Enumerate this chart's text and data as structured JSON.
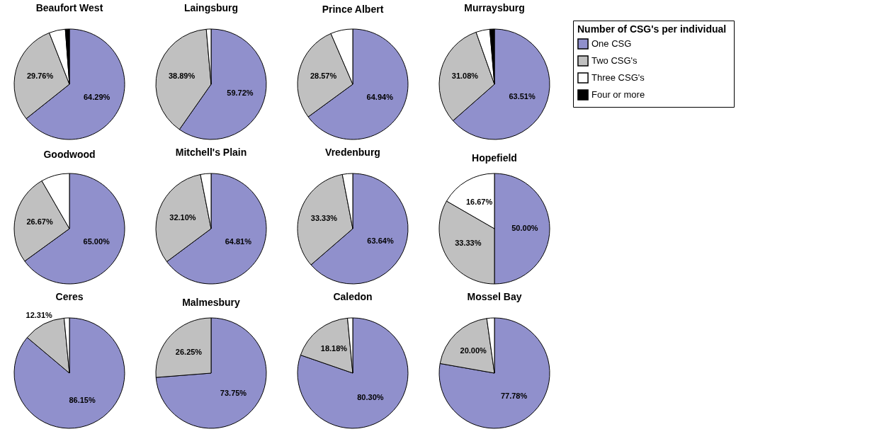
{
  "chart_data": [
    {
      "type": "pie",
      "title": "Beaufort West",
      "legend": "right",
      "legend_title": "Number of CSG's  per individual",
      "categories": [
        "One CSG",
        "Two CSG's",
        "Three CSG's",
        "Four or more"
      ],
      "colors": [
        "#9090cc",
        "#c0c0c0",
        "#ffffff",
        "#000000"
      ],
      "values": [
        64.29,
        29.76,
        4.76,
        1.19
      ],
      "value_labels": [
        "64.29%",
        "29.76%",
        null,
        null
      ]
    },
    {
      "type": "pie",
      "title": "Laingsburg",
      "categories": [
        null,
        null,
        null,
        null
      ],
      "colors": [
        "#9090cc",
        "#c0c0c0",
        "#ffffff",
        "#000000"
      ],
      "values": [
        59.72,
        38.89,
        1.39,
        null
      ],
      "value_labels": [
        "59.72%",
        "38.89%",
        null,
        null
      ]
    },
    {
      "type": "pie",
      "title": "Prince Albert",
      "categories": [
        null,
        null,
        null,
        null
      ],
      "colors": [
        "#9090cc",
        "#c0c0c0",
        "#ffffff",
        "#000000"
      ],
      "values": [
        64.94,
        28.57,
        6.49,
        null
      ],
      "value_labels": [
        "64.94%",
        "28.57%",
        null,
        null
      ]
    },
    {
      "type": "pie",
      "title": "Murraysburg",
      "categories": [
        null,
        null,
        null,
        null
      ],
      "colors": [
        "#9090cc",
        "#c0c0c0",
        "#ffffff",
        "#000000"
      ],
      "values": [
        63.51,
        31.08,
        4.05,
        1.35
      ],
      "value_labels": [
        "63.51%",
        "31.08%",
        null,
        null
      ]
    },
    {
      "type": "pie",
      "title": "Goodwood",
      "categories": [
        null,
        null,
        null,
        null
      ],
      "colors": [
        "#9090cc",
        "#c0c0c0",
        "#ffffff",
        "#000000"
      ],
      "values": [
        65.0,
        26.67,
        8.33,
        null
      ],
      "value_labels": [
        "65.00%",
        "26.67%",
        null,
        null
      ]
    },
    {
      "type": "pie",
      "title": "Mitchell's Plain",
      "categories": [
        null,
        null,
        null,
        null
      ],
      "colors": [
        "#9090cc",
        "#c0c0c0",
        "#ffffff",
        "#000000"
      ],
      "values": [
        64.81,
        32.1,
        3.09,
        null
      ],
      "value_labels": [
        "64.81%",
        "32.10%",
        null,
        null
      ]
    },
    {
      "type": "pie",
      "title": "Vredenburg",
      "categories": [
        null,
        null,
        null,
        null
      ],
      "colors": [
        "#9090cc",
        "#c0c0c0",
        "#ffffff",
        "#000000"
      ],
      "values": [
        63.64,
        33.33,
        3.03,
        null
      ],
      "value_labels": [
        "63.64%",
        "33.33%",
        null,
        null
      ]
    },
    {
      "type": "pie",
      "title": "Hopefield",
      "categories": [
        null,
        null,
        null,
        null
      ],
      "colors": [
        "#9090cc",
        "#c0c0c0",
        "#ffffff",
        "#000000"
      ],
      "values": [
        50.0,
        33.33,
        16.67,
        null
      ],
      "value_labels": [
        "50.00%",
        "33.33%",
        "16.67%",
        null
      ]
    },
    {
      "type": "pie",
      "title": "Ceres",
      "categories": [
        null,
        null,
        null,
        null
      ],
      "colors": [
        "#9090cc",
        "#c0c0c0",
        "#ffffff",
        "#000000"
      ],
      "values": [
        86.15,
        12.31,
        1.54,
        null
      ],
      "value_labels": [
        "86.15%",
        "12.31%",
        null,
        null
      ]
    },
    {
      "type": "pie",
      "title": "Malmesbury",
      "categories": [
        null,
        null,
        null,
        null
      ],
      "colors": [
        "#9090cc",
        "#c0c0c0",
        "#ffffff",
        "#000000"
      ],
      "values": [
        73.75,
        26.25,
        null,
        null
      ],
      "value_labels": [
        "73.75%",
        "26.25%",
        null,
        null
      ]
    },
    {
      "type": "pie",
      "title": "Caledon",
      "categories": [
        null,
        null,
        null,
        null
      ],
      "colors": [
        "#9090cc",
        "#c0c0c0",
        "#ffffff",
        "#000000"
      ],
      "values": [
        80.3,
        18.18,
        1.52,
        null
      ],
      "value_labels": [
        "80.30%",
        "18.18%",
        null,
        null
      ]
    },
    {
      "type": "pie",
      "title": "Mossel Bay",
      "categories": [
        null,
        null,
        null,
        null
      ],
      "colors": [
        "#9090cc",
        "#c0c0c0",
        "#ffffff",
        "#000000"
      ],
      "values": [
        77.78,
        20.0,
        2.22,
        null
      ],
      "value_labels": [
        "77.78%",
        "20.00%",
        null,
        null
      ]
    }
  ]
}
